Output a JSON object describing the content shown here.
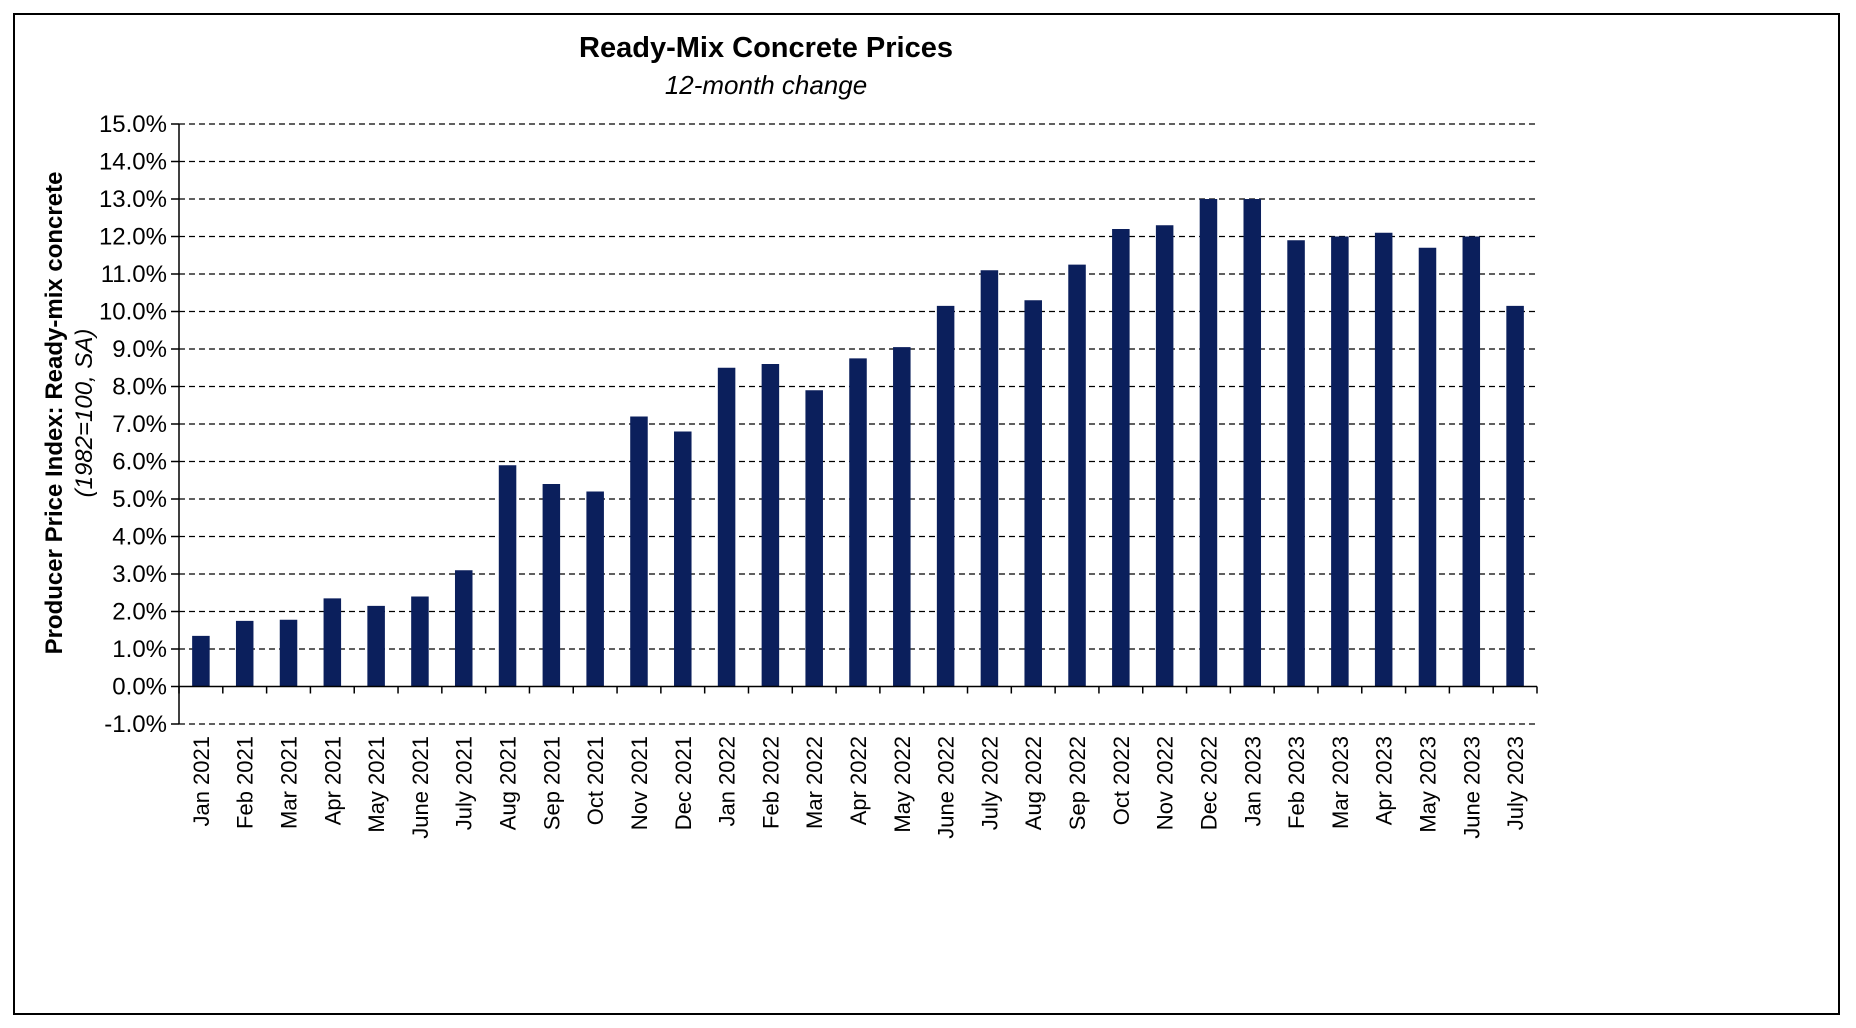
{
  "chart_data": {
    "type": "bar",
    "title": "Ready-Mix Concrete Prices",
    "subtitle": "12-month change",
    "ylabel": "Producer Price Index: Ready-mix concrete",
    "ylabel_sub": "(1982=100, SA)",
    "xlabel": "",
    "ylim": [
      -1.0,
      15.0
    ],
    "ytick_step": 1.0,
    "ytick_format": "percent_1dp",
    "grid": "horizontal-dashed",
    "legend": "none",
    "bar_color": "#0B1F5C",
    "categories": [
      "Jan 2021",
      "Feb 2021",
      "Mar 2021",
      "Apr 2021",
      "May 2021",
      "June 2021",
      "July 2021",
      "Aug 2021",
      "Sep 2021",
      "Oct 2021",
      "Nov 2021",
      "Dec 2021",
      "Jan 2022",
      "Feb 2022",
      "Mar 2022",
      "Apr 2022",
      "May 2022",
      "June 2022",
      "July 2022",
      "Aug 2022",
      "Sep 2022",
      "Oct 2022",
      "Nov 2022",
      "Dec 2022",
      "Jan 2023",
      "Feb 2023",
      "Mar 2023",
      "Apr 2023",
      "May 2023",
      "June 2023",
      "July 2023"
    ],
    "values": [
      1.35,
      1.75,
      1.78,
      2.35,
      2.15,
      2.4,
      3.1,
      5.9,
      5.4,
      5.2,
      7.2,
      6.8,
      8.5,
      8.6,
      7.9,
      8.75,
      9.05,
      10.15,
      11.1,
      10.3,
      11.25,
      12.2,
      12.3,
      13.0,
      13.0,
      11.9,
      12.0,
      12.1,
      11.7,
      12.0,
      10.15
    ]
  }
}
